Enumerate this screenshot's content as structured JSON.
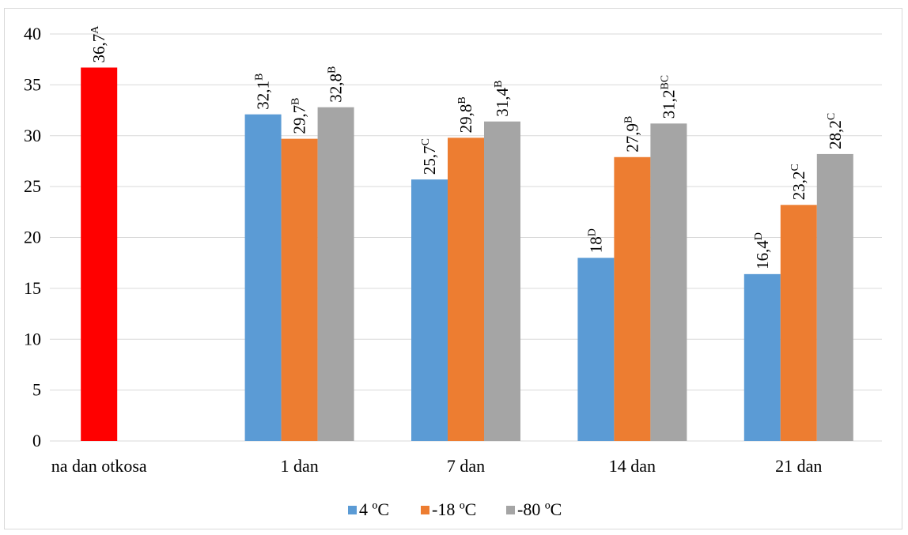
{
  "chart_data": {
    "type": "bar",
    "categories": [
      "na dan otkosa",
      "1 dan",
      "7 dan",
      "14 dan",
      "21 dan"
    ],
    "ylim": [
      0,
      40
    ],
    "yticks": [
      0,
      5,
      10,
      15,
      20,
      25,
      30,
      35,
      40
    ],
    "grid": true,
    "legend_position": "bottom",
    "series": [
      {
        "name": "4 ºC",
        "color": "#5b9bd5",
        "values": [
          null,
          32.1,
          25.7,
          18,
          16.4
        ],
        "labels": [
          "",
          "32,1",
          "25,7",
          "18",
          "16,4"
        ],
        "letters": [
          "",
          "B",
          "C",
          "D",
          "D"
        ]
      },
      {
        "name": "-18 ºC",
        "color": "#ed7d31",
        "values": [
          null,
          29.7,
          29.8,
          27.9,
          23.2
        ],
        "labels": [
          "",
          "29,7",
          "29,8",
          "27,9",
          "23,2"
        ],
        "letters": [
          "",
          "B",
          "B",
          "B",
          "C"
        ]
      },
      {
        "name": "-80 ºC",
        "color": "#a5a5a5",
        "values": [
          null,
          32.8,
          31.4,
          31.2,
          28.2
        ],
        "labels": [
          "",
          "32,8",
          "31,4",
          "31,2",
          "28,2"
        ],
        "letters": [
          "",
          "B",
          "B",
          "BC",
          "C"
        ]
      }
    ],
    "baseline": {
      "category": "na dan otkosa",
      "value": 36.7,
      "label": "36,7",
      "letter": "A",
      "color": "#ff0000"
    }
  }
}
